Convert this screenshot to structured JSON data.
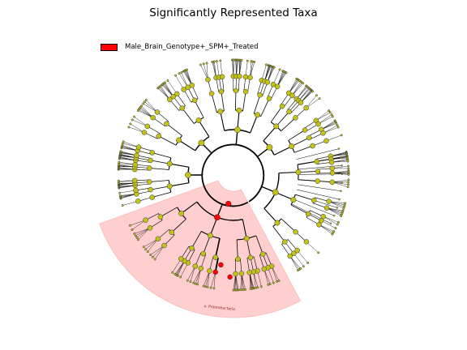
{
  "title": "Significantly Represented Taxa",
  "legend": {
    "label": "Male_Brain_Genotype+_SPM+_Treated",
    "color": "#ff0000"
  },
  "highlight": {
    "label": "a: Proteobacteria",
    "color": "#ffcccc"
  },
  "colors": {
    "node_default": "#c2c217",
    "node_enriched": "#ff0000",
    "branch": "#000000"
  }
}
